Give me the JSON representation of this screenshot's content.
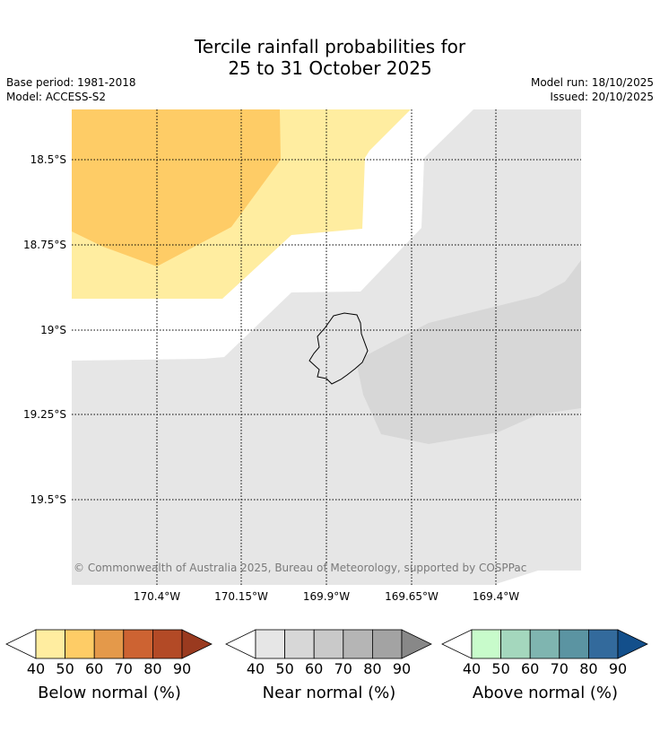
{
  "title_line1": "Tercile rainfall probabilities for",
  "title_line2": "25 to 31 October 2025",
  "base_period": "Base period: 1981-2018",
  "model": "Model: ACCESS-S2",
  "model_run": "Model run: 18/10/2025",
  "issued": "Issued: 20/10/2025",
  "copyright": "© Commonwealth of Australia 2025, Bureau of Meteorology, supported by COSPPac",
  "lat_labels": [
    "18.5°S",
    "18.75°S",
    "19°S",
    "19.25°S",
    "19.5°S"
  ],
  "lon_labels": [
    "170.4°W",
    "170.15°W",
    "169.9°W",
    "169.65°W",
    "169.4°W"
  ],
  "colors": {
    "below_40": "#ffeda0",
    "below_50": "#fecc66",
    "near_40": "#e6e6e6",
    "near_50": "#d7d7d7",
    "island_outline": "#000000"
  },
  "legends": [
    {
      "title": "Below normal (%)",
      "ticks": [
        "40",
        "50",
        "60",
        "70",
        "80",
        "90"
      ],
      "colors": [
        "#ffffff",
        "#ffeda0",
        "#fecc66",
        "#e4994a",
        "#cd6332",
        "#b34a26",
        "#9a3a1f"
      ]
    },
    {
      "title": "Near normal (%)",
      "ticks": [
        "40",
        "50",
        "60",
        "70",
        "80",
        "90"
      ],
      "colors": [
        "#ffffff",
        "#e6e6e6",
        "#d7d7d7",
        "#c9c9c9",
        "#b5b5b5",
        "#a3a3a3",
        "#888888"
      ]
    },
    {
      "title": "Above normal (%)",
      "ticks": [
        "40",
        "50",
        "60",
        "70",
        "80",
        "90"
      ],
      "colors": [
        "#ffffff",
        "#c8fbcb",
        "#a4d7bd",
        "#7fb5b0",
        "#5b94a2",
        "#336a9c",
        "#134f8b"
      ]
    }
  ]
}
